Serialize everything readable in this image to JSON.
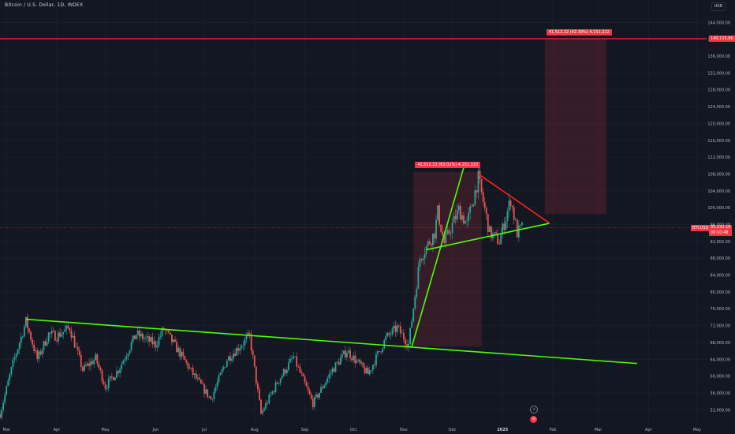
{
  "header": {
    "title": "Bitcoin / U.S. Dollar, 1D, INDEX",
    "currency_button": "USD"
  },
  "colors": {
    "background": "#131722",
    "grid": "#1e222d",
    "up": "#26a69a",
    "down": "#ef5350",
    "trend_green": "#4cff00",
    "trend_red": "#ff1e1e",
    "label_red": "#f23645",
    "axis_text": "#b2b5be",
    "zone_fill": "rgba(242,54,69,0.16)"
  },
  "labels": {
    "measure_1": "41,512.22 (62.02%) 4,151,222",
    "measure_2": "41,512.22 (42.39%) 4,151,222",
    "resistance_value": "140,115.86",
    "symbol_tag": "BTCUSD",
    "last_price": "95,232.16",
    "countdown": "09:10:48",
    "event_icons": [
      "⚡",
      "⊙"
    ]
  },
  "chart_data": {
    "type": "candlestick",
    "title": "Bitcoin / U.S. Dollar, 1D, INDEX",
    "ylabel": "",
    "xlabel": "",
    "ylim": [
      50000,
      148000
    ],
    "y_ticks": [
      52000,
      56000,
      60000,
      64000,
      68000,
      72000,
      76000,
      80000,
      84000,
      88000,
      92000,
      96000,
      100000,
      104000,
      108000,
      112000,
      116000,
      120000,
      124000,
      128000,
      132000,
      136000,
      140000,
      144000
    ],
    "y_tick_labels": [
      "52,000.00",
      "56,000.00",
      "60,000.00",
      "64,000.00",
      "68,000.00",
      "72,000.00",
      "76,000.00",
      "80,000.00",
      "84,000.00",
      "88,000.00",
      "92,000.00",
      "96,000.00",
      "100,000.00",
      "104,000.00",
      "108,000.00",
      "112,000.00",
      "116,000.00",
      "120,000.00",
      "124,000.00",
      "128,000.00",
      "132,000.00",
      "136,000.00",
      "140,000.00",
      "144,000.00"
    ],
    "x_ticks": [
      "Mar",
      "Apr",
      "May",
      "Jun",
      "Jul",
      "Aug",
      "Sep",
      "Oct",
      "Nov",
      "Dec",
      "2025",
      "Feb",
      "Mar",
      "Apr",
      "May"
    ],
    "grid": true,
    "last_price": 95232.16,
    "price_path": [
      {
        "date": "2024-02-26",
        "close": 51000
      },
      {
        "date": "2024-03-05",
        "close": 63000
      },
      {
        "date": "2024-03-13",
        "close": 73000
      },
      {
        "date": "2024-03-20",
        "close": 64000
      },
      {
        "date": "2024-03-27",
        "close": 70000
      },
      {
        "date": "2024-04-01",
        "close": 69500
      },
      {
        "date": "2024-04-09",
        "close": 71500
      },
      {
        "date": "2024-04-17",
        "close": 61500
      },
      {
        "date": "2024-04-25",
        "close": 64200
      },
      {
        "date": "2024-05-01",
        "close": 57500
      },
      {
        "date": "2024-05-09",
        "close": 61500
      },
      {
        "date": "2024-05-20",
        "close": 70000
      },
      {
        "date": "2024-06-01",
        "close": 67500
      },
      {
        "date": "2024-06-06",
        "close": 71200
      },
      {
        "date": "2024-06-15",
        "close": 66000
      },
      {
        "date": "2024-06-24",
        "close": 60500
      },
      {
        "date": "2024-07-05",
        "close": 54500
      },
      {
        "date": "2024-07-15",
        "close": 64000
      },
      {
        "date": "2024-07-29",
        "close": 69500
      },
      {
        "date": "2024-08-05",
        "close": 51000
      },
      {
        "date": "2024-08-15",
        "close": 58500
      },
      {
        "date": "2024-08-25",
        "close": 64500
      },
      {
        "date": "2024-09-06",
        "close": 53500
      },
      {
        "date": "2024-09-18",
        "close": 61500
      },
      {
        "date": "2024-09-27",
        "close": 66000
      },
      {
        "date": "2024-10-10",
        "close": 60500
      },
      {
        "date": "2024-10-21",
        "close": 69000
      },
      {
        "date": "2024-10-28",
        "close": 71500
      },
      {
        "date": "2024-11-04",
        "close": 67500
      },
      {
        "date": "2024-11-11",
        "close": 88000
      },
      {
        "date": "2024-11-20",
        "close": 94000
      },
      {
        "date": "2024-11-22",
        "close": 99000
      },
      {
        "date": "2024-11-26",
        "close": 91500
      },
      {
        "date": "2024-12-05",
        "close": 99500
      },
      {
        "date": "2024-12-10",
        "close": 96000
      },
      {
        "date": "2024-12-17",
        "close": 107000
      },
      {
        "date": "2024-12-24",
        "close": 94000
      },
      {
        "date": "2024-12-30",
        "close": 92000
      },
      {
        "date": "2025-01-06",
        "close": 102000
      },
      {
        "date": "2025-01-10",
        "close": 94000
      },
      {
        "date": "2025-01-13",
        "close": 95232
      }
    ],
    "annotations": {
      "horizontal_line": 140115.86,
      "lower_trendline": [
        {
          "date": "2024-03-13",
          "price": 73500
        },
        {
          "date": "2025-03-25",
          "price": 63000
        }
      ],
      "upper_trendline": [
        {
          "date": "2024-11-09",
          "price": 78000
        },
        {
          "date": "2024-11-20",
          "price": 102000
        },
        {
          "date": "2024-12-08",
          "price": 108000
        }
      ],
      "triangle_support": [
        {
          "date": "2024-11-15",
          "price": 90000
        },
        {
          "date": "2025-01-30",
          "price": 96300
        }
      ],
      "triangle_resistance": [
        {
          "date": "2024-12-17",
          "price": 108000
        },
        {
          "date": "2025-01-30",
          "price": 96300
        }
      ],
      "impulse_up": [
        {
          "date": "2024-11-06",
          "price": 67000
        },
        {
          "date": "2024-12-08",
          "price": 109500
        }
      ],
      "measure_zone_1": {
        "from": "2024-11-07",
        "to": "2024-12-19",
        "low": 67000,
        "high": 108500
      },
      "measure_zone_2": {
        "from": "2025-01-27",
        "to": "2025-03-06",
        "low": 98500,
        "high": 140000
      }
    }
  }
}
